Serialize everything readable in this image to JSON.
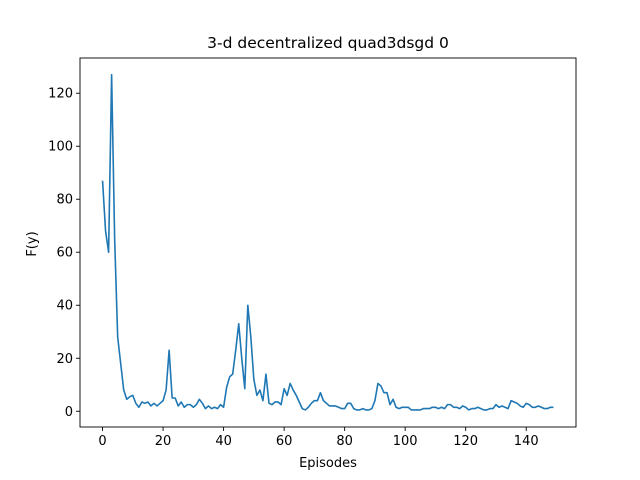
{
  "chart_data": {
    "type": "line",
    "title": "3-d decentralized quad3dsgd 0",
    "xlabel": "Episodes",
    "ylabel": "F(y)",
    "xlim": [
      -7.45,
      156.45
    ],
    "ylim": [
      -5.94,
      133.29
    ],
    "xticks": [
      0,
      20,
      40,
      60,
      80,
      100,
      120,
      140
    ],
    "yticks": [
      0,
      20,
      40,
      60,
      80,
      100,
      120
    ],
    "grid": false,
    "line_color": "#1f77b4",
    "series": [
      {
        "values": [
          87,
          68,
          60,
          127,
          65,
          28,
          18,
          8,
          4.5,
          5.5,
          6,
          3,
          1.5,
          3.5,
          3,
          3.5,
          2,
          3,
          2,
          3,
          4,
          8,
          23,
          5,
          5,
          2,
          3.5,
          1.5,
          2.5,
          2.5,
          1.5,
          2.5,
          4.5,
          3,
          1,
          2,
          1,
          1.5,
          1,
          2.5,
          1.5,
          9,
          13,
          14,
          23,
          33,
          20,
          8.5,
          40,
          28,
          12,
          6,
          8,
          4,
          14,
          3,
          2.5,
          3.5,
          3.5,
          2.5,
          8.5,
          6,
          10.5,
          8,
          6,
          3.5,
          1,
          0.5,
          1.5,
          3,
          4,
          4,
          7,
          4,
          3,
          2,
          2,
          2,
          1.5,
          1,
          1,
          3,
          3,
          1,
          0.5,
          0.5,
          1,
          0.5,
          0.5,
          1,
          4,
          10.5,
          9.5,
          7,
          7,
          2.5,
          4.5,
          1.5,
          1,
          1.5,
          1.5,
          1.5,
          0.5,
          0.5,
          0.5,
          0.5,
          1,
          1,
          1,
          1.5,
          1.5,
          1,
          1.5,
          1,
          2.5,
          2.5,
          1.5,
          1.5,
          1,
          2,
          1.5,
          0.5,
          1,
          1,
          1.5,
          1,
          0.5,
          0.5,
          1,
          1,
          2.5,
          1.5,
          2,
          1.5,
          1,
          4,
          3.5,
          3,
          2,
          1.5,
          3,
          2.5,
          1.5,
          1.5,
          2,
          1.5,
          1,
          1,
          1.5,
          1.5
        ]
      }
    ]
  }
}
